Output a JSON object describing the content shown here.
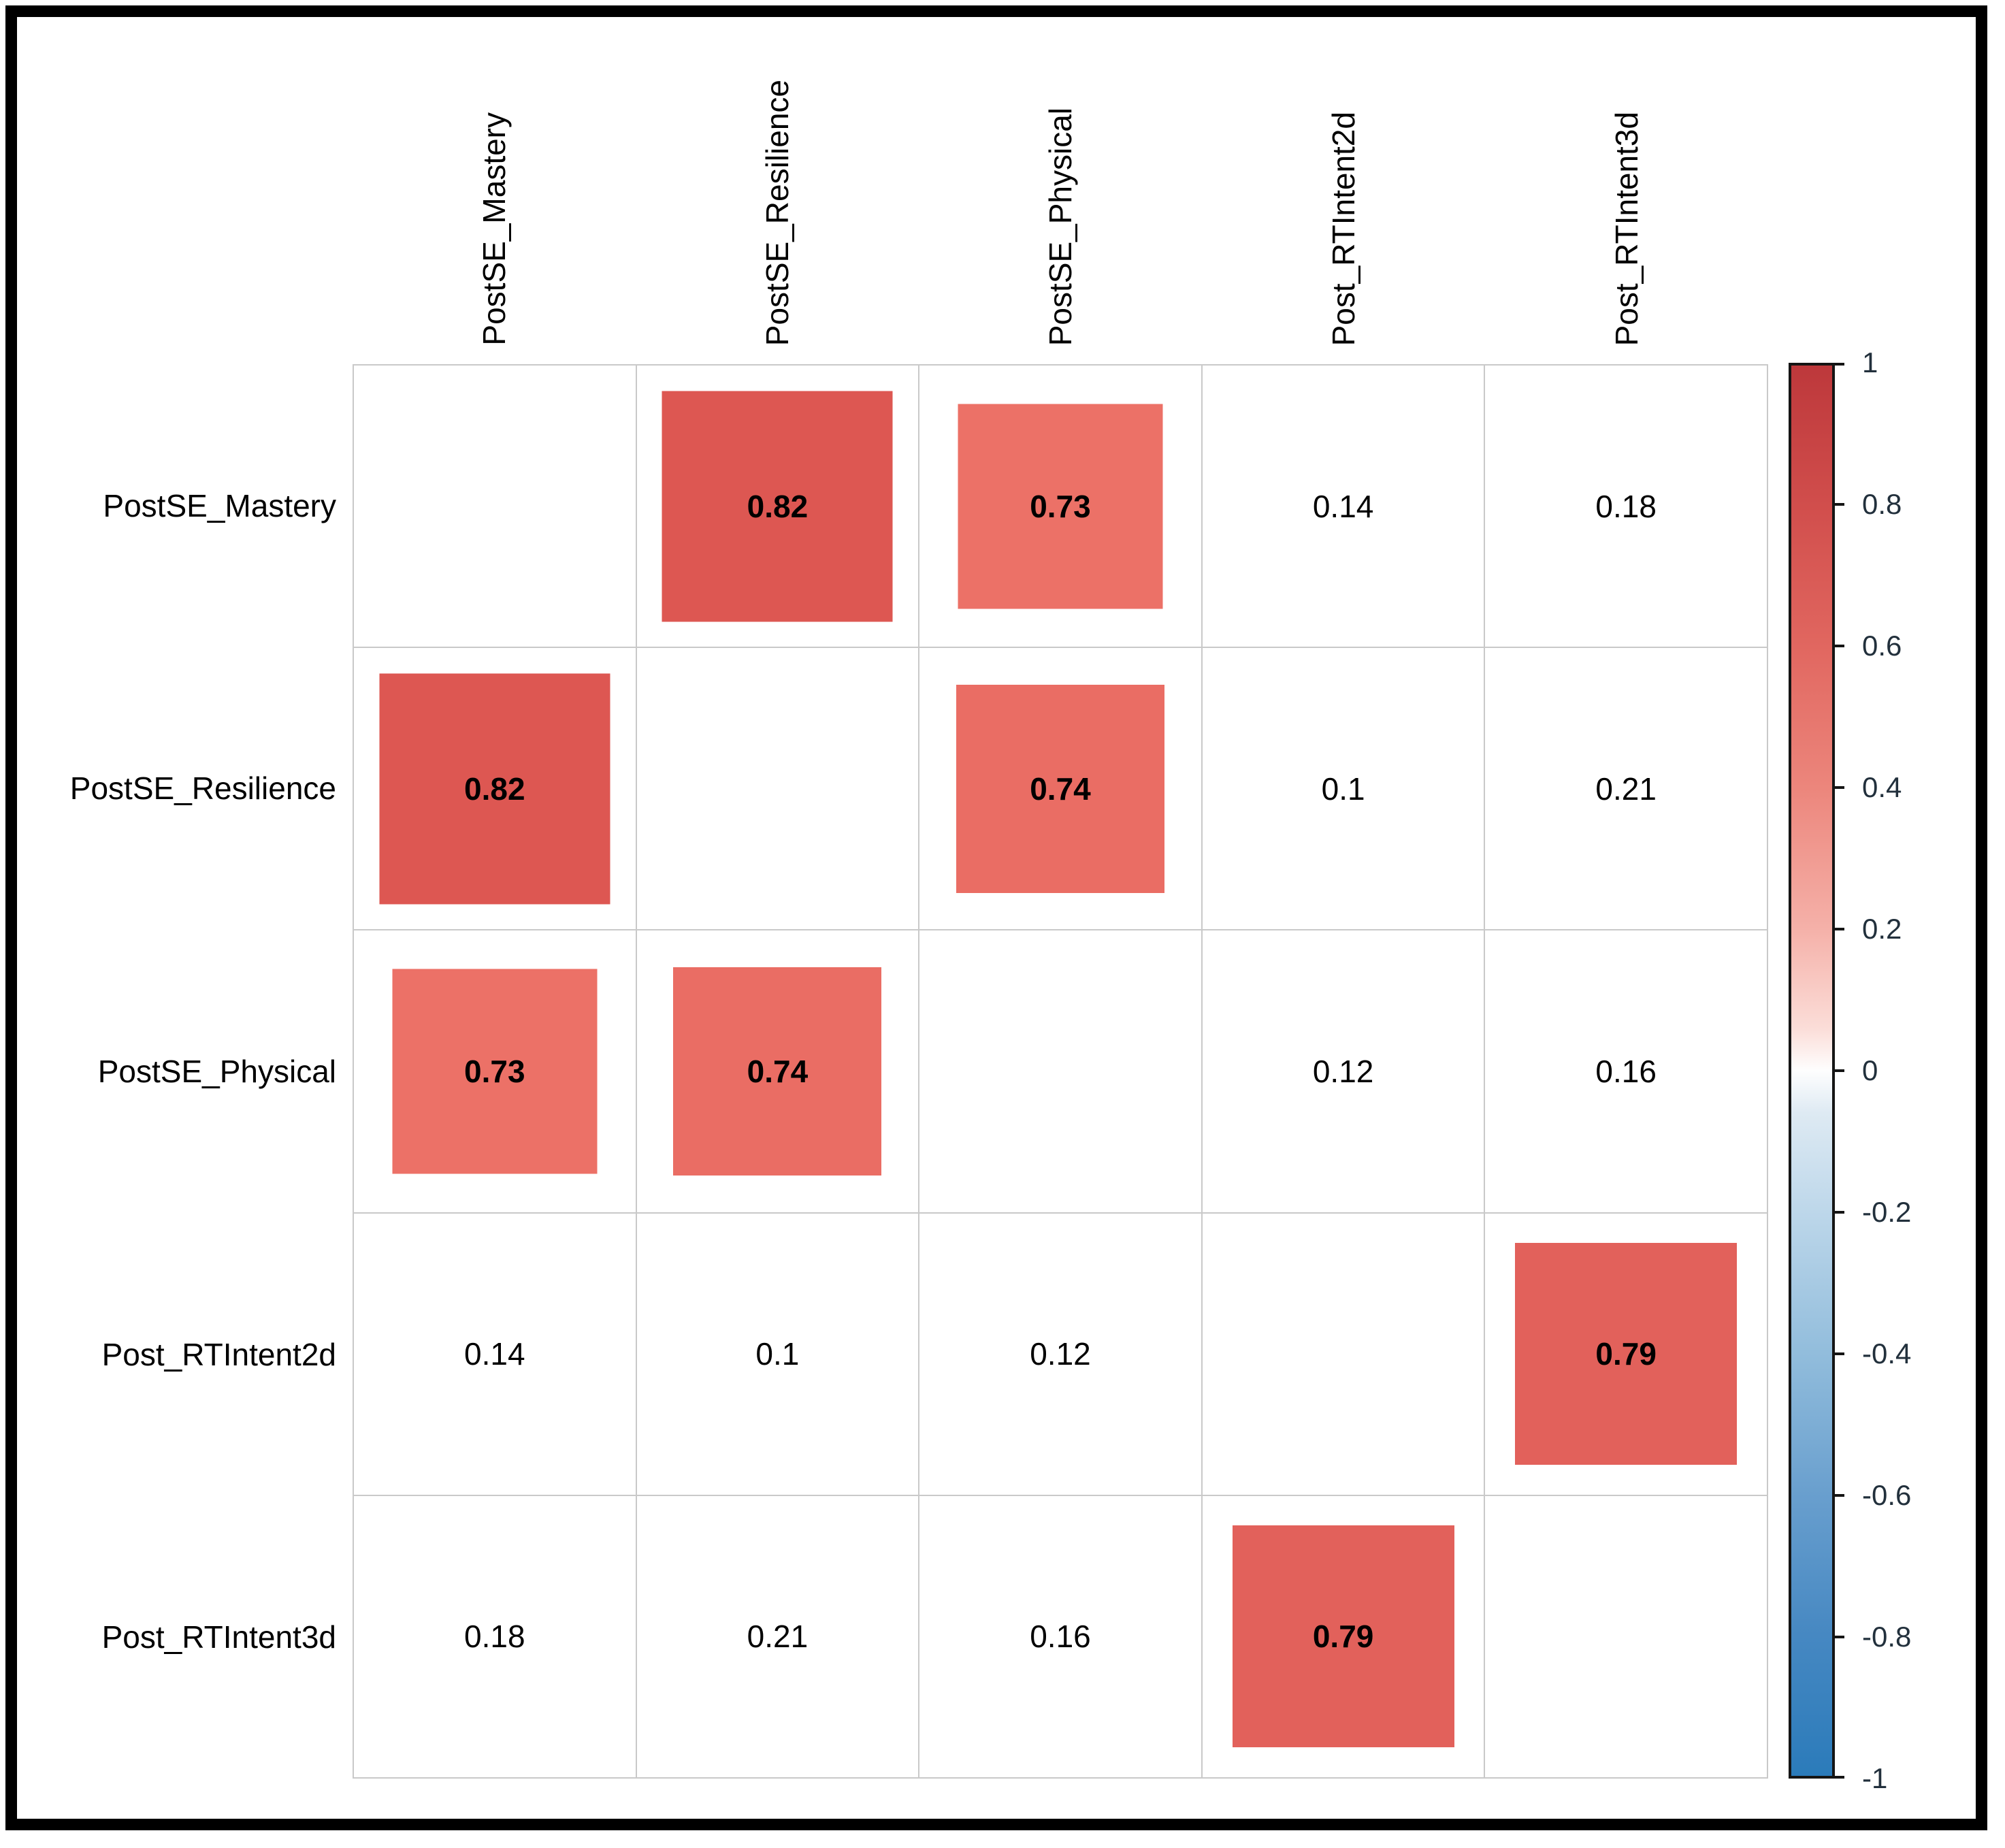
{
  "chart_data": {
    "type": "heatmap",
    "subtype": "correlation-matrix",
    "variables": [
      "PostSE_Mastery",
      "PostSE_Resilience",
      "PostSE_Physical",
      "Post_RTIntent2d",
      "Post_RTIntent3d"
    ],
    "matrix": [
      [
        null,
        0.82,
        0.73,
        0.14,
        0.18
      ],
      [
        0.82,
        null,
        0.74,
        0.1,
        0.21
      ],
      [
        0.73,
        0.74,
        null,
        0.12,
        0.16
      ],
      [
        0.14,
        0.1,
        0.12,
        null,
        0.79
      ],
      [
        0.18,
        0.21,
        0.16,
        0.79,
        null
      ]
    ],
    "cells": [
      [
        {
          "display": "",
          "square": false,
          "color": null
        },
        {
          "display": "0.82",
          "square": true,
          "color": "#DD5752"
        },
        {
          "display": "0.73",
          "square": true,
          "color": "#EC7167"
        },
        {
          "display": "0.14",
          "square": false,
          "color": null
        },
        {
          "display": "0.18",
          "square": false,
          "color": null
        }
      ],
      [
        {
          "display": "0.82",
          "square": true,
          "color": "#DD5752"
        },
        {
          "display": "",
          "square": false,
          "color": null
        },
        {
          "display": "0.74",
          "square": true,
          "color": "#EA6D64"
        },
        {
          "display": "0.1",
          "square": false,
          "color": null
        },
        {
          "display": "0.21",
          "square": false,
          "color": null
        }
      ],
      [
        {
          "display": "0.73",
          "square": true,
          "color": "#EC7167"
        },
        {
          "display": "0.74",
          "square": true,
          "color": "#EA6D64"
        },
        {
          "display": "",
          "square": false,
          "color": null
        },
        {
          "display": "0.12",
          "square": false,
          "color": null
        },
        {
          "display": "0.16",
          "square": false,
          "color": null
        }
      ],
      [
        {
          "display": "0.14",
          "square": false,
          "color": null
        },
        {
          "display": "0.1",
          "square": false,
          "color": null
        },
        {
          "display": "0.12",
          "square": false,
          "color": null
        },
        {
          "display": "",
          "square": false,
          "color": null
        },
        {
          "display": "0.79",
          "square": true,
          "color": "#E2615B"
        }
      ],
      [
        {
          "display": "0.18",
          "square": false,
          "color": null
        },
        {
          "display": "0.21",
          "square": false,
          "color": null
        },
        {
          "display": "0.16",
          "square": false,
          "color": null
        },
        {
          "display": "0.79",
          "square": true,
          "color": "#E2615B"
        },
        {
          "display": "",
          "square": false,
          "color": null
        }
      ]
    ],
    "colorbar": {
      "position": "right",
      "range": [
        -1,
        1
      ],
      "tick_labels": [
        "1",
        "0.8",
        "0.6",
        "0.4",
        "0.2",
        "0",
        "-0.2",
        "-0.4",
        "-0.6",
        "-0.8",
        "-1"
      ],
      "gradient_stops": [
        {
          "pct": 0,
          "color": "#BD383B"
        },
        {
          "pct": 10,
          "color": "#D14E4C"
        },
        {
          "pct": 20,
          "color": "#E16760"
        },
        {
          "pct": 30,
          "color": "#EC867C"
        },
        {
          "pct": 40,
          "color": "#F5B1A9"
        },
        {
          "pct": 47,
          "color": "#FBDDD8"
        },
        {
          "pct": 50,
          "color": "#FEFEFE"
        },
        {
          "pct": 53,
          "color": "#DEEAF3"
        },
        {
          "pct": 60,
          "color": "#BDD7EA"
        },
        {
          "pct": 70,
          "color": "#92BDDC"
        },
        {
          "pct": 80,
          "color": "#699FCE"
        },
        {
          "pct": 90,
          "color": "#4688C2"
        },
        {
          "pct": 100,
          "color": "#2B7BBA"
        }
      ]
    },
    "grid_lines": true,
    "layout": {
      "square_size_rule": "abs(r) * cell_size",
      "bold_values_on_squares": true
    }
  },
  "colors": {
    "frame_border": "#000000",
    "grid_line": "#C9C9C9",
    "cell_background": "#FFFFFF",
    "label_text": "#000000",
    "strong_positive_square": "#DD5752",
    "moderate_positive_square": "#EC7167"
  }
}
